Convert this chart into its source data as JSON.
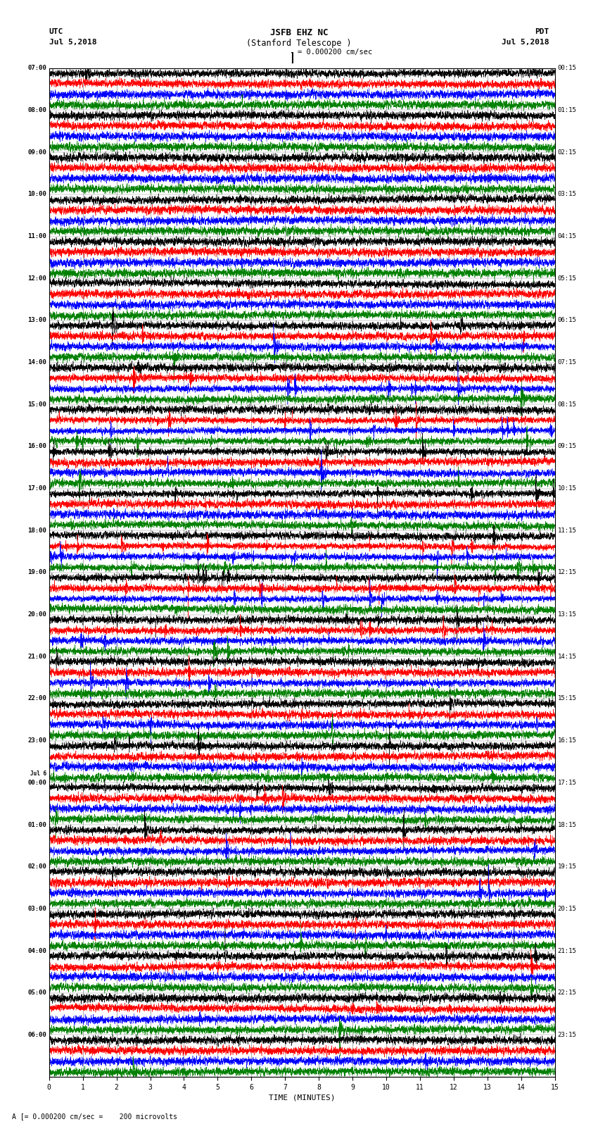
{
  "title_line1": "JSFB EHZ NC",
  "title_line2": "(Stanford Telescope )",
  "scale_text": "= 0.000200 cm/sec",
  "utc_label": "UTC",
  "utc_date": "Jul 5,2018",
  "pdt_label": "PDT",
  "pdt_date": "Jul 5,2018",
  "xlabel": "TIME (MINUTES)",
  "bottom_annotation": "A [= 0.000200 cm/sec =    200 microvolts",
  "left_times": [
    "07:00",
    "08:00",
    "09:00",
    "10:00",
    "11:00",
    "12:00",
    "13:00",
    "14:00",
    "15:00",
    "16:00",
    "17:00",
    "18:00",
    "19:00",
    "20:00",
    "21:00",
    "22:00",
    "23:00",
    "Jul 6\n00:00",
    "01:00",
    "02:00",
    "03:00",
    "04:00",
    "05:00",
    "06:00"
  ],
  "right_times": [
    "00:15",
    "01:15",
    "02:15",
    "03:15",
    "04:15",
    "05:15",
    "06:15",
    "07:15",
    "08:15",
    "09:15",
    "10:15",
    "11:15",
    "12:15",
    "13:15",
    "14:15",
    "15:15",
    "16:15",
    "17:15",
    "18:15",
    "19:15",
    "20:15",
    "21:15",
    "22:15",
    "23:15"
  ],
  "n_rows": 24,
  "n_cols": 4,
  "colors": [
    "black",
    "red",
    "blue",
    "green"
  ],
  "bg_color": "white",
  "xlim": [
    0,
    15
  ],
  "xticks": [
    0,
    1,
    2,
    3,
    4,
    5,
    6,
    7,
    8,
    9,
    10,
    11,
    12,
    13,
    14,
    15
  ],
  "figsize": [
    8.5,
    16.13
  ],
  "dpi": 100,
  "amplitude_by_row": [
    0.025,
    0.022,
    0.02,
    0.02,
    0.02,
    0.022,
    0.06,
    0.12,
    0.15,
    0.16,
    0.17,
    0.18,
    0.13,
    0.1,
    0.08,
    0.08,
    0.075,
    0.08,
    0.075,
    0.07,
    0.065,
    0.06,
    0.055,
    0.05
  ]
}
